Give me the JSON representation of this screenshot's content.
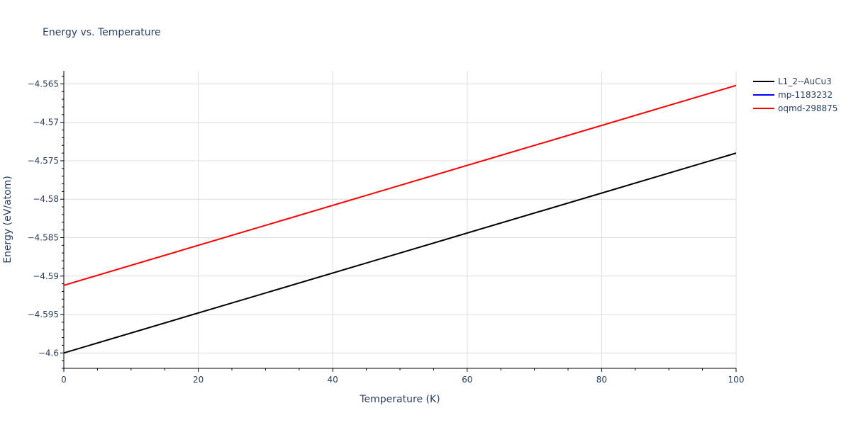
{
  "chart_data": {
    "type": "line",
    "title": "Energy vs. Temperature",
    "xlabel": "Temperature (K)",
    "ylabel": "Energy (eV/atom)",
    "xlim": [
      0,
      100
    ],
    "ylim": [
      -4.602,
      -4.5633
    ],
    "x_ticks": [
      0,
      20,
      40,
      60,
      80,
      100
    ],
    "y_ticks": [
      -4.565,
      -4.57,
      -4.575,
      -4.58,
      -4.585,
      -4.59,
      -4.595,
      -4.6
    ],
    "x_tick_labels": [
      "0",
      "20",
      "40",
      "60",
      "80",
      "100"
    ],
    "y_tick_labels": [
      "−4.565",
      "−4.57",
      "−4.575",
      "−4.58",
      "−4.585",
      "−4.59",
      "−4.595",
      "−4.6"
    ],
    "grid": true,
    "legend_position": "top-right",
    "series": [
      {
        "name": "L1_2--AuCu3",
        "color": "#000000",
        "x": [
          0,
          100
        ],
        "y": [
          -4.6,
          -4.574
        ]
      },
      {
        "name": "mp-1183232",
        "color": "#0000ff",
        "x": [],
        "y": []
      },
      {
        "name": "oqmd-298875",
        "color": "#ff0000",
        "x": [
          0,
          100
        ],
        "y": [
          -4.5912,
          -4.5652
        ]
      }
    ]
  }
}
